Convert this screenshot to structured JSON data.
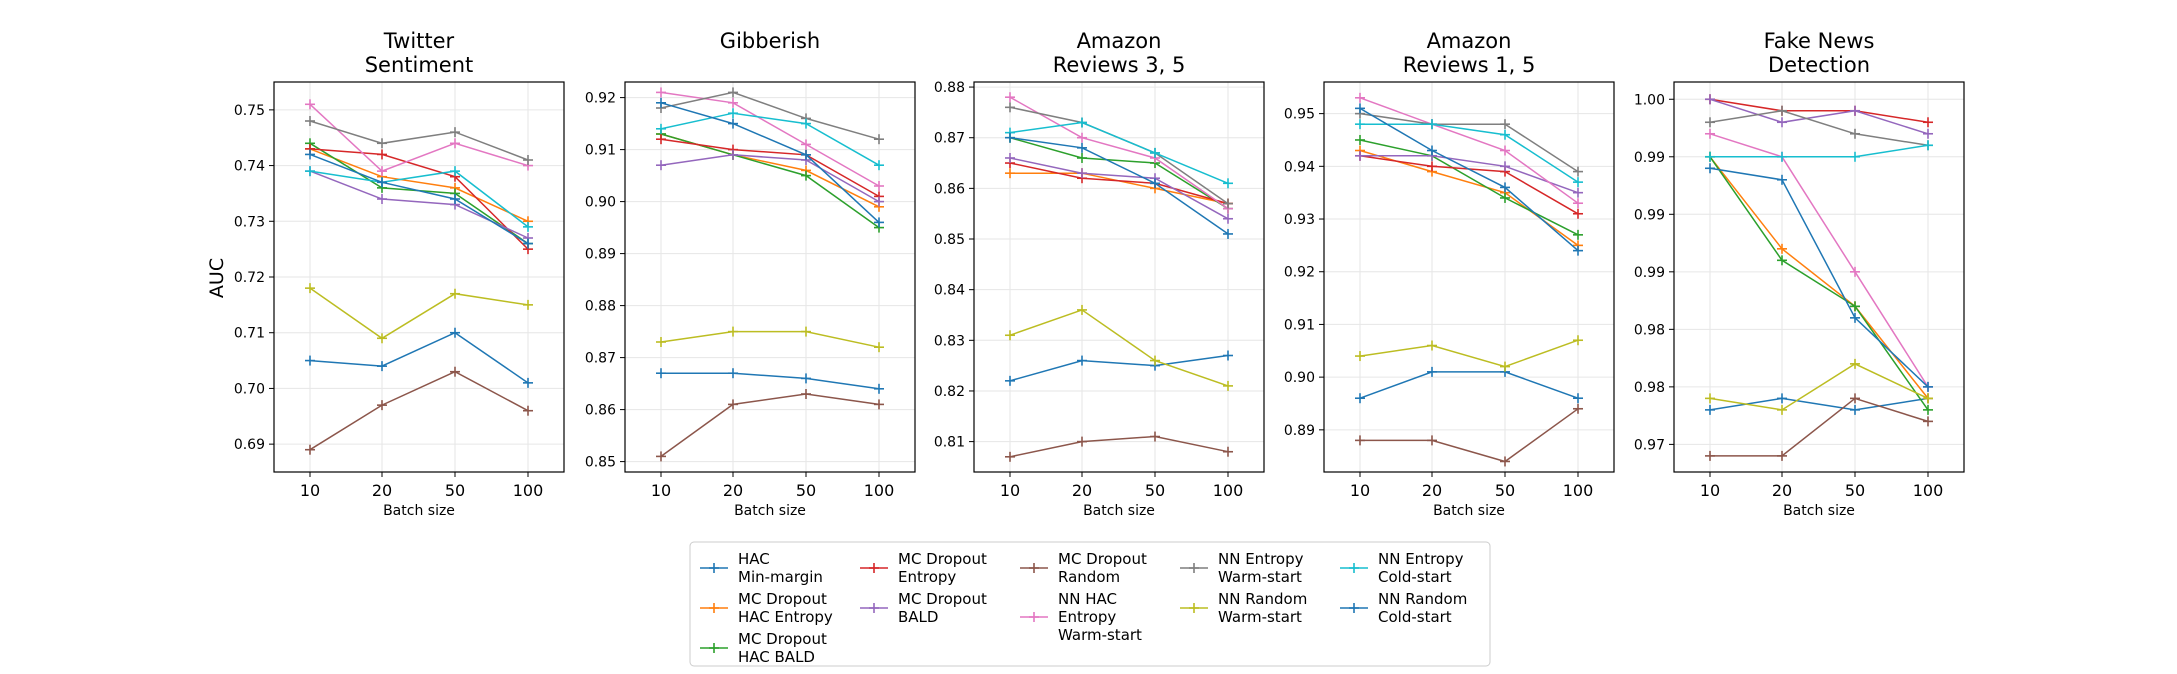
{
  "figure": {
    "ylabel": "AUC",
    "xlabel": "Batch size",
    "x_ticks": [
      "10",
      "20",
      "50",
      "100"
    ]
  },
  "legend": {
    "placement": "bottom-center",
    "entries": [
      {
        "lines": [
          "HAC",
          "Min-margin"
        ],
        "color": "#1f77b4"
      },
      {
        "lines": [
          "MC Dropout",
          "HAC Entropy"
        ],
        "color": "#ff7f0e"
      },
      {
        "lines": [
          "MC Dropout",
          "HAC BALD"
        ],
        "color": "#2ca02c"
      },
      {
        "lines": [
          "MC Dropout",
          "Entropy"
        ],
        "color": "#d62728"
      },
      {
        "lines": [
          "MC Dropout",
          "BALD"
        ],
        "color": "#9467bd"
      },
      {
        "lines": [
          "MC Dropout",
          "Random"
        ],
        "color": "#8c564b"
      },
      {
        "lines": [
          "NN HAC",
          "Entropy",
          "Warm-start"
        ],
        "color": "#e377c2"
      },
      {
        "lines": [
          "NN Entropy",
          "Warm-start"
        ],
        "color": "#7f7f7f"
      },
      {
        "lines": [
          "NN Random",
          "Warm-start"
        ],
        "color": "#bcbd22"
      },
      {
        "lines": [
          "NN Entropy",
          "Cold-start"
        ],
        "color": "#17becf"
      },
      {
        "lines": [
          "NN Random",
          "Cold-start"
        ],
        "color": "#1f77b4"
      }
    ]
  },
  "chart_data": [
    {
      "type": "line",
      "title": [
        "Twitter",
        "Sentiment"
      ],
      "xlabel": "Batch size",
      "ylabel": "AUC",
      "categories": [
        "10",
        "20",
        "50",
        "100"
      ],
      "ylim": [
        0.685,
        0.755
      ],
      "yticks": [
        0.69,
        0.7,
        0.71,
        0.72,
        0.73,
        0.74,
        0.75
      ],
      "ytick_labels": [
        "0.69",
        "0.70",
        "0.71",
        "0.72",
        "0.73",
        "0.74",
        "0.75"
      ],
      "series": [
        {
          "color": "#1f77b4",
          "values": [
            0.705,
            0.704,
            0.71,
            0.701
          ]
        },
        {
          "color": "#ff7f0e",
          "values": [
            0.743,
            0.738,
            0.736,
            0.73
          ]
        },
        {
          "color": "#2ca02c",
          "values": [
            0.744,
            0.736,
            0.735,
            0.726
          ]
        },
        {
          "color": "#d62728",
          "values": [
            0.743,
            0.742,
            0.738,
            0.725
          ]
        },
        {
          "color": "#9467bd",
          "values": [
            0.739,
            0.734,
            0.733,
            0.727
          ]
        },
        {
          "color": "#8c564b",
          "values": [
            0.689,
            0.697,
            0.703,
            0.696
          ]
        },
        {
          "color": "#e377c2",
          "values": [
            0.751,
            0.739,
            0.744,
            0.74
          ]
        },
        {
          "color": "#7f7f7f",
          "values": [
            0.748,
            0.744,
            0.746,
            0.741
          ]
        },
        {
          "color": "#bcbd22",
          "values": [
            0.718,
            0.709,
            0.717,
            0.715
          ]
        },
        {
          "color": "#17becf",
          "values": [
            0.739,
            0.737,
            0.739,
            0.729
          ]
        },
        {
          "color": "#1f77b4",
          "values": [
            0.742,
            0.737,
            0.734,
            0.726
          ]
        }
      ]
    },
    {
      "type": "line",
      "title": [
        "Gibberish"
      ],
      "xlabel": "Batch size",
      "ylabel": "",
      "categories": [
        "10",
        "20",
        "50",
        "100"
      ],
      "ylim": [
        0.848,
        0.923
      ],
      "yticks": [
        0.85,
        0.86,
        0.87,
        0.88,
        0.89,
        0.9,
        0.91,
        0.92
      ],
      "ytick_labels": [
        "0.85",
        "0.86",
        "0.87",
        "0.88",
        "0.89",
        "0.90",
        "0.91",
        "0.92"
      ],
      "series": [
        {
          "color": "#1f77b4",
          "values": [
            0.867,
            0.867,
            0.866,
            0.864
          ]
        },
        {
          "color": "#ff7f0e",
          "values": [
            0.913,
            0.909,
            0.906,
            0.899
          ]
        },
        {
          "color": "#2ca02c",
          "values": [
            0.913,
            0.909,
            0.905,
            0.895
          ]
        },
        {
          "color": "#d62728",
          "values": [
            0.912,
            0.91,
            0.909,
            0.901
          ]
        },
        {
          "color": "#9467bd",
          "values": [
            0.907,
            0.909,
            0.908,
            0.9
          ]
        },
        {
          "color": "#8c564b",
          "values": [
            0.851,
            0.861,
            0.863,
            0.861
          ]
        },
        {
          "color": "#e377c2",
          "values": [
            0.921,
            0.919,
            0.911,
            0.903
          ]
        },
        {
          "color": "#7f7f7f",
          "values": [
            0.918,
            0.921,
            0.916,
            0.912
          ]
        },
        {
          "color": "#bcbd22",
          "values": [
            0.873,
            0.875,
            0.875,
            0.872
          ]
        },
        {
          "color": "#17becf",
          "values": [
            0.914,
            0.917,
            0.915,
            0.907
          ]
        },
        {
          "color": "#1f77b4",
          "values": [
            0.919,
            0.915,
            0.909,
            0.896
          ]
        }
      ]
    },
    {
      "type": "line",
      "title": [
        "Amazon",
        "Reviews 3, 5"
      ],
      "xlabel": "Batch size",
      "ylabel": "",
      "categories": [
        "10",
        "20",
        "50",
        "100"
      ],
      "ylim": [
        0.804,
        0.881
      ],
      "yticks": [
        0.81,
        0.82,
        0.83,
        0.84,
        0.85,
        0.86,
        0.87,
        0.88
      ],
      "ytick_labels": [
        "0.81",
        "0.82",
        "0.83",
        "0.84",
        "0.85",
        "0.86",
        "0.87",
        "0.88"
      ],
      "series": [
        {
          "color": "#1f77b4",
          "values": [
            0.822,
            0.826,
            0.825,
            0.827
          ]
        },
        {
          "color": "#ff7f0e",
          "values": [
            0.863,
            0.863,
            0.86,
            0.857
          ]
        },
        {
          "color": "#2ca02c",
          "values": [
            0.87,
            0.866,
            0.865,
            0.856
          ]
        },
        {
          "color": "#d62728",
          "values": [
            0.865,
            0.862,
            0.861,
            0.857
          ]
        },
        {
          "color": "#9467bd",
          "values": [
            0.866,
            0.863,
            0.862,
            0.854
          ]
        },
        {
          "color": "#8c564b",
          "values": [
            0.807,
            0.81,
            0.811,
            0.808
          ]
        },
        {
          "color": "#e377c2",
          "values": [
            0.878,
            0.87,
            0.866,
            0.856
          ]
        },
        {
          "color": "#7f7f7f",
          "values": [
            0.876,
            0.873,
            0.867,
            0.857
          ]
        },
        {
          "color": "#bcbd22",
          "values": [
            0.831,
            0.836,
            0.826,
            0.821
          ]
        },
        {
          "color": "#17becf",
          "values": [
            0.871,
            0.873,
            0.867,
            0.861
          ]
        },
        {
          "color": "#1f77b4",
          "values": [
            0.87,
            0.868,
            0.861,
            0.851
          ]
        }
      ]
    },
    {
      "type": "line",
      "title": [
        "Amazon",
        "Reviews 1, 5"
      ],
      "xlabel": "Batch size",
      "ylabel": "",
      "categories": [
        "10",
        "20",
        "50",
        "100"
      ],
      "ylim": [
        0.882,
        0.956
      ],
      "yticks": [
        0.89,
        0.9,
        0.91,
        0.92,
        0.93,
        0.94,
        0.95
      ],
      "ytick_labels": [
        "0.89",
        "0.90",
        "0.91",
        "0.92",
        "0.93",
        "0.94",
        "0.95"
      ],
      "series": [
        {
          "color": "#1f77b4",
          "values": [
            0.896,
            0.901,
            0.901,
            0.896
          ]
        },
        {
          "color": "#ff7f0e",
          "values": [
            0.943,
            0.939,
            0.935,
            0.925
          ]
        },
        {
          "color": "#2ca02c",
          "values": [
            0.945,
            0.942,
            0.934,
            0.927
          ]
        },
        {
          "color": "#d62728",
          "values": [
            0.942,
            0.94,
            0.939,
            0.931
          ]
        },
        {
          "color": "#9467bd",
          "values": [
            0.942,
            0.942,
            0.94,
            0.935
          ]
        },
        {
          "color": "#8c564b",
          "values": [
            0.888,
            0.888,
            0.884,
            0.894
          ]
        },
        {
          "color": "#e377c2",
          "values": [
            0.953,
            0.948,
            0.943,
            0.933
          ]
        },
        {
          "color": "#7f7f7f",
          "values": [
            0.95,
            0.948,
            0.948,
            0.939
          ]
        },
        {
          "color": "#bcbd22",
          "values": [
            0.904,
            0.906,
            0.902,
            0.907
          ]
        },
        {
          "color": "#17becf",
          "values": [
            0.948,
            0.948,
            0.946,
            0.937
          ]
        },
        {
          "color": "#1f77b4",
          "values": [
            0.951,
            0.943,
            0.936,
            0.924
          ]
        }
      ]
    },
    {
      "type": "line",
      "title": [
        "Fake News",
        "Detection"
      ],
      "xlabel": "Batch size",
      "ylabel": "",
      "categories": [
        "10",
        "20",
        "50",
        "100"
      ],
      "ylim": [
        0.9676,
        1.0015
      ],
      "yticks": [
        0.97,
        0.975,
        0.98,
        0.985,
        0.99,
        0.995,
        1.0
      ],
      "ytick_labels": [
        "0.97",
        "0.98",
        "0.98",
        "0.99",
        "0.99",
        "0.99",
        "1.00"
      ],
      "series": [
        {
          "color": "#1f77b4",
          "values": [
            0.973,
            0.974,
            0.973,
            0.974
          ]
        },
        {
          "color": "#ff7f0e",
          "values": [
            0.995,
            0.987,
            0.982,
            0.974
          ]
        },
        {
          "color": "#2ca02c",
          "values": [
            0.995,
            0.986,
            0.982,
            0.973
          ]
        },
        {
          "color": "#d62728",
          "values": [
            1.0,
            0.999,
            0.999,
            0.998
          ]
        },
        {
          "color": "#9467bd",
          "values": [
            1.0,
            0.998,
            0.999,
            0.997
          ]
        },
        {
          "color": "#8c564b",
          "values": [
            0.969,
            0.969,
            0.974,
            0.972
          ]
        },
        {
          "color": "#e377c2",
          "values": [
            0.997,
            0.995,
            0.985,
            0.975
          ]
        },
        {
          "color": "#7f7f7f",
          "values": [
            0.998,
            0.999,
            0.997,
            0.996
          ]
        },
        {
          "color": "#bcbd22",
          "values": [
            0.974,
            0.973,
            0.977,
            0.974
          ]
        },
        {
          "color": "#17becf",
          "values": [
            0.995,
            0.995,
            0.995,
            0.996
          ]
        },
        {
          "color": "#1f77b4",
          "values": [
            0.994,
            0.993,
            0.981,
            0.975
          ]
        }
      ]
    }
  ]
}
